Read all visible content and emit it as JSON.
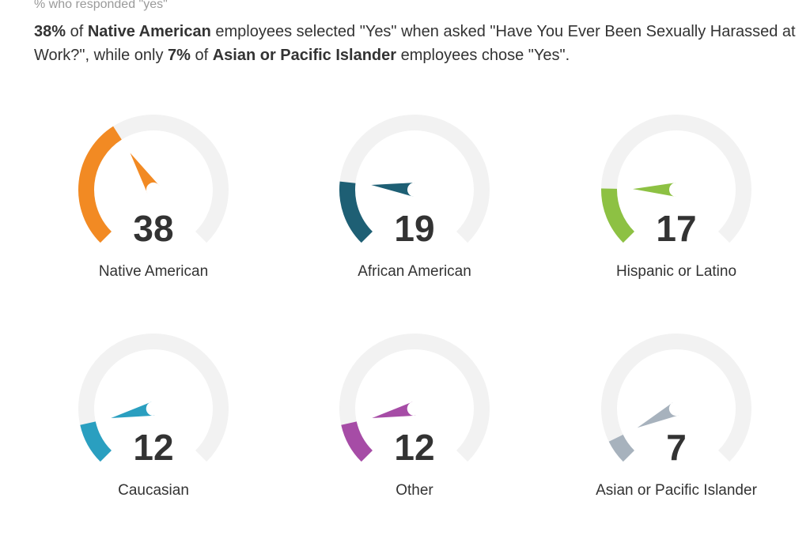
{
  "header": {
    "subtitle": "% who responded \"yes\"",
    "headline_parts": [
      {
        "text": "38%",
        "bold": true
      },
      {
        "text": " of ",
        "bold": false
      },
      {
        "text": "Native American",
        "bold": true
      },
      {
        "text": " employees selected \"Yes\" when asked \"Have You Ever Been Sexually Harassed at Work?\", while only ",
        "bold": false
      },
      {
        "text": "7%",
        "bold": true
      },
      {
        "text": " of ",
        "bold": false
      },
      {
        "text": "Asian or Pacific Islander",
        "bold": true
      },
      {
        "text": " employees chose \"Yes\".",
        "bold": false
      }
    ]
  },
  "colors": {
    "track": "#f2f2f2",
    "text": "#333333",
    "subtitle": "#9a9a9a"
  },
  "chart_data": {
    "type": "gauge",
    "min": 0,
    "max": 100,
    "categories": [
      "Native American",
      "African American",
      "Hispanic or Latino",
      "Caucasian",
      "Other",
      "Asian or Pacific Islander"
    ],
    "values": [
      38,
      19,
      17,
      12,
      12,
      7
    ],
    "colors": [
      "#f28a23",
      "#1e5f74",
      "#8dc143",
      "#2a9fc0",
      "#a64ca6",
      "#a7b2bd"
    ]
  }
}
